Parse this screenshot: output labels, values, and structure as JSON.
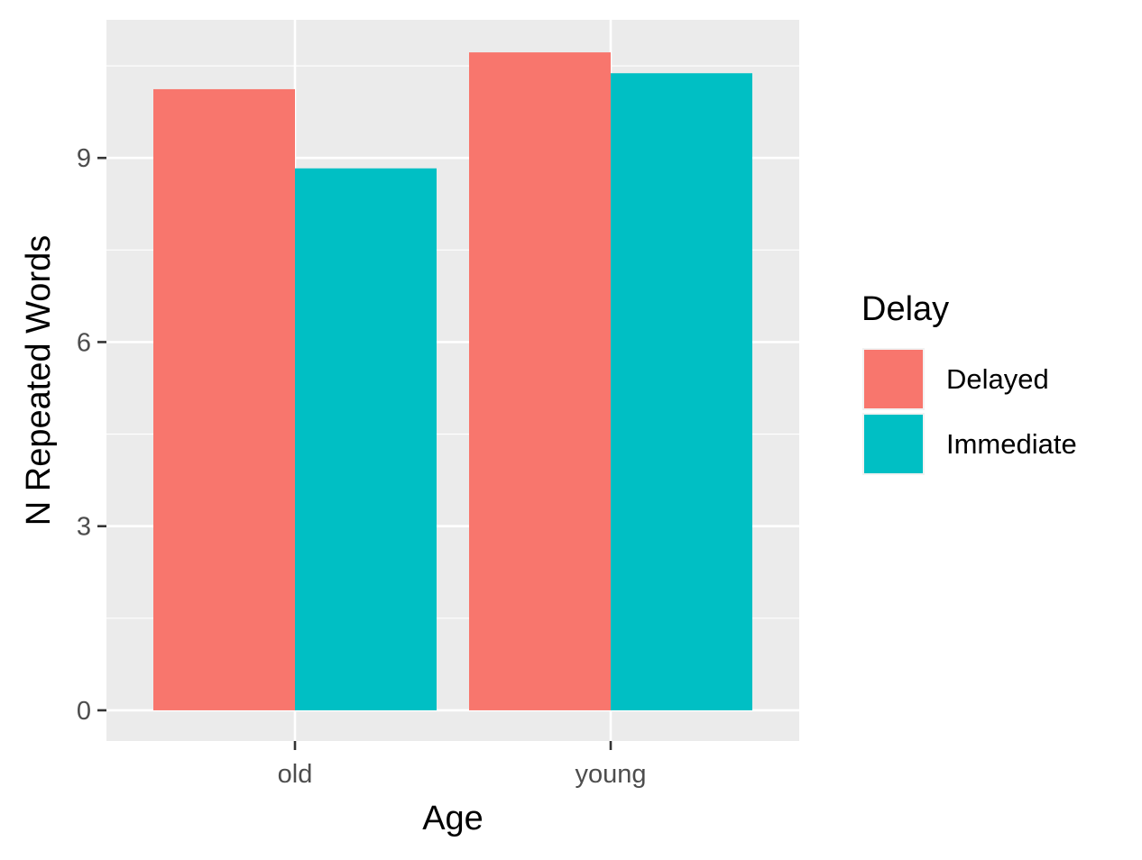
{
  "chart_data": {
    "type": "bar",
    "title": "",
    "xlabel": "Age",
    "ylabel": "N Repeated Words",
    "categories": [
      "old",
      "young"
    ],
    "series": [
      {
        "name": "Delayed",
        "values": [
          10.12,
          10.72
        ],
        "color": "#F8766D"
      },
      {
        "name": "Immediate",
        "values": [
          8.83,
          10.38
        ],
        "color": "#00BFC4"
      }
    ],
    "yticks": [
      0,
      3,
      6,
      9
    ],
    "ylim": [
      -0.5,
      11.25
    ],
    "grid": true,
    "legend": {
      "title": "Delay",
      "position": "right",
      "entries": [
        "Delayed",
        "Immediate"
      ]
    }
  },
  "colors": {
    "panel_background": "#EBEBEB",
    "gridline": "#FFFFFF",
    "tick_text": "#4D4D4D"
  }
}
